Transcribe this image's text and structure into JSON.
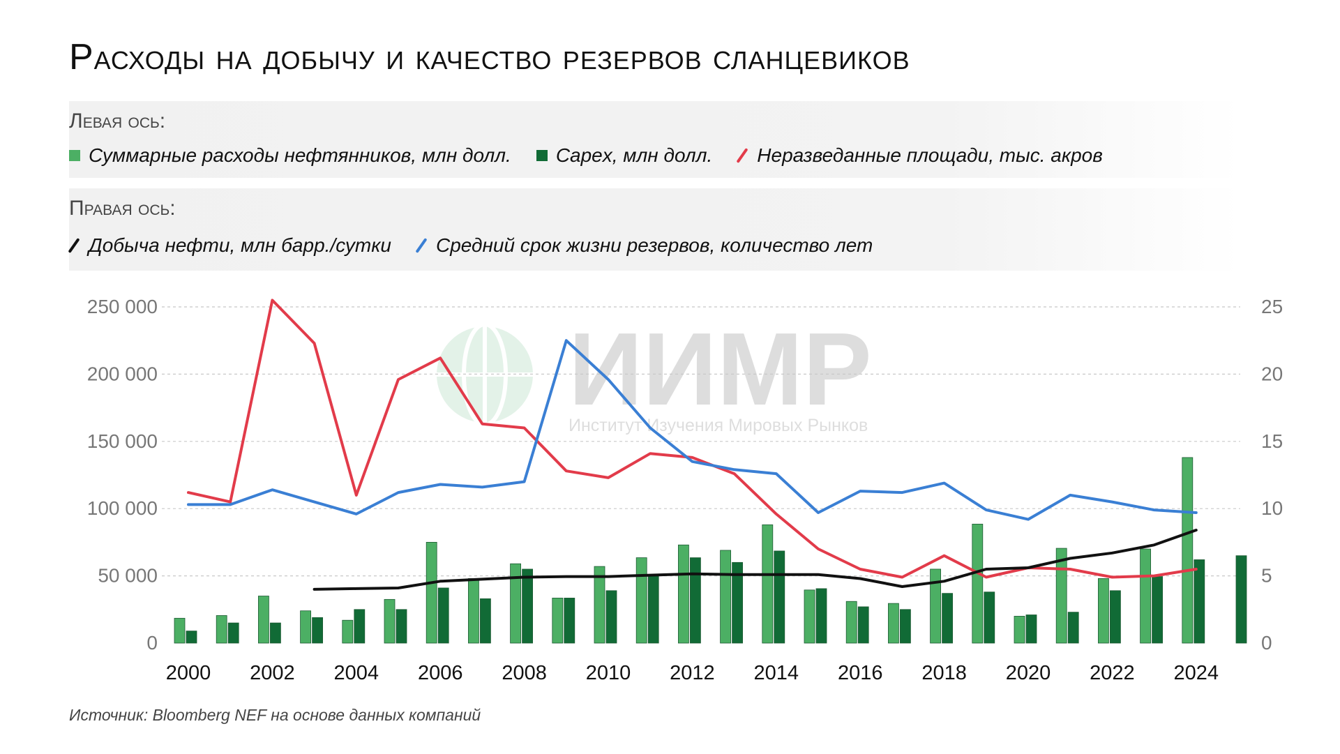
{
  "title": "Расходы на добычу и качество резервов сланцевиков",
  "legend": {
    "left_heading": "Левая ось:",
    "right_heading": "Правая ось:",
    "items_left": [
      {
        "label": "Суммарные расходы нефтянников, млн долл.",
        "color": "#4caf64",
        "icon": "square-icon"
      },
      {
        "label": "Capex, млн долл.",
        "color": "#116b36",
        "icon": "square-icon"
      },
      {
        "label": "Неразведанные площади, тыс. акров",
        "color": "#e23b4a",
        "icon": "line-icon"
      }
    ],
    "items_right": [
      {
        "label": "Добыча нефти, млн барр./сутки",
        "color": "#111111",
        "icon": "line-icon"
      },
      {
        "label": "Средний срок жизни резервов, количество лет",
        "color": "#3a7fd4",
        "icon": "line-icon"
      }
    ]
  },
  "watermark": {
    "text": "ИИМР",
    "subtitle": "Институт Изучения Мировых Рынков"
  },
  "source": "Источник: Bloomberg NEF на основе данных компаний",
  "chart_data": {
    "type": "bar",
    "x": [
      2000,
      2001,
      2002,
      2003,
      2004,
      2005,
      2006,
      2007,
      2008,
      2009,
      2010,
      2011,
      2012,
      2013,
      2014,
      2015,
      2016,
      2017,
      2018,
      2019,
      2020,
      2021,
      2022,
      2023,
      2024,
      2025
    ],
    "x_tick_labels": [
      "2000",
      "2002",
      "2004",
      "2006",
      "2008",
      "2010",
      "2012",
      "2014",
      "2016",
      "2018",
      "2020",
      "2022",
      "2024"
    ],
    "y_left_ticks": [
      "0",
      "50 000",
      "100 000",
      "150 000",
      "200 000",
      "250 000"
    ],
    "y_right_ticks": [
      "0",
      "5",
      "10",
      "15",
      "20",
      "25"
    ],
    "ylim_left": [
      0,
      250000
    ],
    "ylim_right": [
      0,
      25
    ],
    "grid": true,
    "series": [
      {
        "name": "Суммарные расходы нефтянников, млн долл.",
        "kind": "bar",
        "axis": "left",
        "color": "#4caf64",
        "values": [
          18500,
          20500,
          35000,
          24000,
          17000,
          32500,
          75000,
          48000,
          59000,
          33500,
          57000,
          63500,
          73000,
          69000,
          88000,
          39500,
          31000,
          29500,
          55000,
          88500,
          20000,
          70500,
          48000,
          70000,
          138000,
          null
        ]
      },
      {
        "name": "Capex, млн долл.",
        "kind": "bar",
        "axis": "left",
        "color": "#116b36",
        "values": [
          9000,
          15000,
          15000,
          19000,
          25000,
          25000,
          41000,
          33000,
          55000,
          33500,
          39000,
          51000,
          63500,
          60000,
          68500,
          40500,
          27000,
          25000,
          37000,
          38000,
          21000,
          23000,
          39000,
          49500,
          62000,
          65000
        ]
      },
      {
        "name": "Неразведанные площади, тыс. акров",
        "kind": "line",
        "axis": "left",
        "color": "#e23b4a",
        "values": [
          112000,
          105000,
          255000,
          223000,
          110000,
          196000,
          212000,
          163000,
          160000,
          128000,
          123000,
          141000,
          138000,
          126000,
          96000,
          70000,
          55000,
          49000,
          65000,
          49000,
          56000,
          55000,
          49000,
          50000,
          55000,
          null
        ]
      },
      {
        "name": "Добыча нефти, млн барр./сутки",
        "kind": "line",
        "axis": "right",
        "color": "#111111",
        "values": [
          null,
          null,
          null,
          4.0,
          4.05,
          4.1,
          4.6,
          4.75,
          4.9,
          4.95,
          4.95,
          5.05,
          5.15,
          5.1,
          5.1,
          5.1,
          4.8,
          4.2,
          4.6,
          5.5,
          5.6,
          6.3,
          6.7,
          7.3,
          8.4,
          null
        ]
      },
      {
        "name": "Средний срок жизни резервов, количество лет",
        "kind": "line",
        "axis": "right",
        "color": "#3a7fd4",
        "values": [
          10.3,
          10.3,
          11.4,
          10.5,
          9.6,
          11.2,
          11.8,
          11.6,
          12.0,
          22.5,
          19.6,
          16.0,
          13.5,
          12.9,
          12.6,
          9.7,
          11.3,
          11.2,
          11.9,
          9.9,
          9.2,
          11.0,
          10.5,
          9.9,
          9.7,
          null
        ]
      }
    ]
  }
}
